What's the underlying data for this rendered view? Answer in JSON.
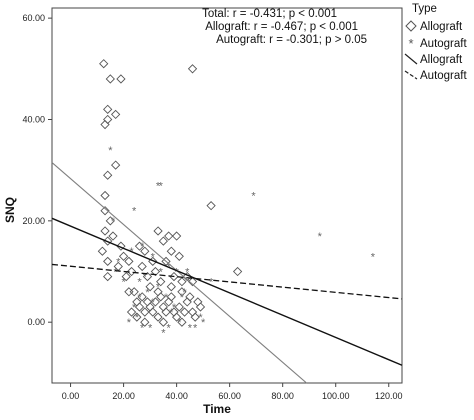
{
  "chart_data": {
    "type": "scatter",
    "xlabel": "Time",
    "ylabel": "SNQ",
    "xlim": [
      -7,
      125
    ],
    "ylim": [
      -12,
      62
    ],
    "x_ticks": [
      "0.00",
      "20.00",
      "40.00",
      "60.00",
      "80.00",
      "100.00",
      "120.00"
    ],
    "x_tick_values": [
      0,
      20,
      40,
      60,
      80,
      100,
      120
    ],
    "y_ticks": [
      "0.00",
      "20.00",
      "40.00",
      "60.00"
    ],
    "y_tick_values": [
      0,
      20,
      40,
      60
    ],
    "stats_lines": [
      "Total: r = -0.431; p < 0.001",
      "Allograft: r = -0.467; p < 0.001",
      "Autograft: r = -0.301; p > 0.05"
    ],
    "legend": {
      "title": "Type",
      "items": [
        "Allograft",
        "Autograft",
        "Allograft",
        "Autograft"
      ]
    },
    "series": [
      {
        "name": "Allograft",
        "marker": "diamond",
        "points": [
          [
            12.5,
            51
          ],
          [
            14,
            42
          ],
          [
            15,
            48
          ],
          [
            19,
            48
          ],
          [
            17,
            41
          ],
          [
            13,
            39
          ],
          [
            14,
            40
          ],
          [
            46,
            50
          ],
          [
            17,
            31
          ],
          [
            13,
            25
          ],
          [
            14,
            29
          ],
          [
            13,
            22
          ],
          [
            15,
            20
          ],
          [
            13,
            18
          ],
          [
            14,
            16
          ],
          [
            12,
            14
          ],
          [
            14,
            12
          ],
          [
            14,
            9
          ],
          [
            16,
            17
          ],
          [
            19,
            15
          ],
          [
            20,
            13
          ],
          [
            18,
            11
          ],
          [
            22,
            12
          ],
          [
            23,
            10
          ],
          [
            21,
            9
          ],
          [
            26,
            15
          ],
          [
            28,
            14
          ],
          [
            33,
            18
          ],
          [
            35,
            16
          ],
          [
            37,
            17
          ],
          [
            40,
            17
          ],
          [
            38,
            14
          ],
          [
            41,
            13
          ],
          [
            36,
            12
          ],
          [
            31,
            12
          ],
          [
            32,
            10
          ],
          [
            29,
            9
          ],
          [
            27,
            11
          ],
          [
            30,
            7
          ],
          [
            34,
            8
          ],
          [
            39,
            9
          ],
          [
            42,
            8
          ],
          [
            44,
            9
          ],
          [
            46,
            8
          ],
          [
            53,
            23
          ],
          [
            63,
            10
          ],
          [
            22,
            6
          ],
          [
            24,
            6
          ],
          [
            25,
            4
          ],
          [
            26,
            3
          ],
          [
            25,
            1
          ],
          [
            27,
            5
          ],
          [
            28,
            2
          ],
          [
            29,
            4
          ],
          [
            30,
            3
          ],
          [
            31,
            2
          ],
          [
            32,
            4
          ],
          [
            33,
            1
          ],
          [
            34,
            5
          ],
          [
            35,
            3
          ],
          [
            36,
            2
          ],
          [
            37,
            4
          ],
          [
            38,
            5
          ],
          [
            39,
            2
          ],
          [
            40,
            1
          ],
          [
            41,
            3
          ],
          [
            43,
            2
          ],
          [
            44,
            4
          ],
          [
            45,
            5
          ],
          [
            46,
            2
          ],
          [
            47,
            1
          ],
          [
            48,
            4
          ],
          [
            49,
            3
          ],
          [
            33,
            6
          ],
          [
            38,
            7
          ],
          [
            42,
            6
          ],
          [
            23,
            2
          ],
          [
            28,
            0
          ],
          [
            35,
            0
          ],
          [
            42,
            0
          ]
        ]
      },
      {
        "name": "Autograft",
        "marker": "asterisk",
        "points": [
          [
            15,
            34
          ],
          [
            24,
            22
          ],
          [
            33,
            27
          ],
          [
            34,
            27
          ],
          [
            16,
            20
          ],
          [
            27,
            15
          ],
          [
            31,
            13
          ],
          [
            69,
            25
          ],
          [
            94,
            17
          ],
          [
            114,
            13
          ],
          [
            53,
            8
          ],
          [
            20,
            8
          ],
          [
            26,
            5
          ],
          [
            29,
            6
          ],
          [
            31,
            4
          ],
          [
            33,
            7
          ],
          [
            36,
            5
          ],
          [
            39,
            3
          ],
          [
            43,
            6
          ],
          [
            45,
            -1
          ],
          [
            49,
            1
          ],
          [
            50,
            0
          ],
          [
            47,
            -1
          ],
          [
            41,
            0
          ],
          [
            37,
            -1
          ],
          [
            35,
            -2
          ],
          [
            30,
            -1
          ],
          [
            27,
            -1
          ],
          [
            25,
            1
          ],
          [
            22,
            0
          ],
          [
            24,
            3
          ],
          [
            26,
            8
          ],
          [
            28,
            9
          ],
          [
            34,
            10
          ],
          [
            37,
            11
          ],
          [
            40,
            10
          ],
          [
            44,
            10
          ],
          [
            17,
            10
          ],
          [
            18,
            12
          ],
          [
            23,
            14
          ],
          [
            42,
            5
          ],
          [
            38,
            2
          ]
        ]
      }
    ],
    "fit_lines": [
      {
        "name": "Allograft",
        "style": "solid-gray",
        "x": [
          -7,
          89
        ],
        "y": [
          31.5,
          -12
        ]
      },
      {
        "name": "Total",
        "style": "solid-black",
        "x": [
          -7,
          125
        ],
        "y": [
          20.5,
          -8.5
        ]
      },
      {
        "name": "Autograft",
        "style": "dashed-black",
        "x": [
          -7,
          125
        ],
        "y": [
          11.4,
          4.6
        ]
      }
    ]
  }
}
